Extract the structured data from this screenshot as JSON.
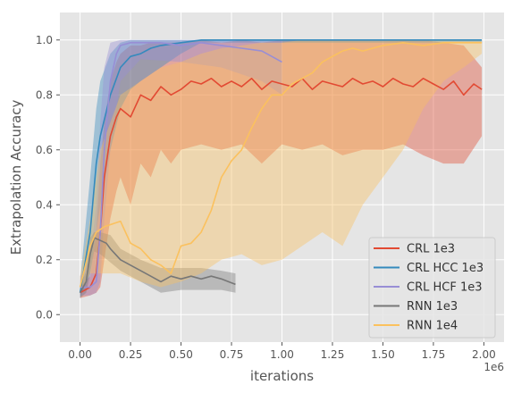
{
  "chart_data": {
    "type": "line",
    "xlabel": "iterations",
    "ylabel": "Extrapolation Accuracy",
    "x_offset_label": "1e6",
    "xlim": [
      -0.1,
      2.1
    ],
    "ylim": [
      -0.1,
      1.1
    ],
    "x_ticks": [
      0.0,
      0.25,
      0.5,
      0.75,
      1.0,
      1.25,
      1.5,
      1.75,
      2.0
    ],
    "x_tick_labels": [
      "0.00",
      "0.25",
      "0.50",
      "0.75",
      "1.00",
      "1.25",
      "1.50",
      "1.75",
      "2.00"
    ],
    "y_ticks": [
      0.0,
      0.2,
      0.4,
      0.6,
      0.8,
      1.0
    ],
    "y_tick_labels": [
      "0.0",
      "0.2",
      "0.4",
      "0.6",
      "0.8",
      "1.0"
    ],
    "grid": true,
    "legend_position": "lower-right",
    "series": [
      {
        "name": "CRL 1e3",
        "color": "#E24A33",
        "points": [
          [
            0.0,
            0.08
          ],
          [
            0.05,
            0.1
          ],
          [
            0.08,
            0.15
          ],
          [
            0.1,
            0.3
          ],
          [
            0.12,
            0.5
          ],
          [
            0.15,
            0.65
          ],
          [
            0.18,
            0.72
          ],
          [
            0.2,
            0.75
          ],
          [
            0.25,
            0.72
          ],
          [
            0.3,
            0.8
          ],
          [
            0.35,
            0.78
          ],
          [
            0.4,
            0.83
          ],
          [
            0.45,
            0.8
          ],
          [
            0.5,
            0.82
          ],
          [
            0.55,
            0.85
          ],
          [
            0.6,
            0.84
          ],
          [
            0.65,
            0.86
          ],
          [
            0.7,
            0.83
          ],
          [
            0.75,
            0.85
          ],
          [
            0.8,
            0.83
          ],
          [
            0.85,
            0.86
          ],
          [
            0.9,
            0.82
          ],
          [
            0.95,
            0.85
          ],
          [
            1.0,
            0.84
          ],
          [
            1.05,
            0.83
          ],
          [
            1.1,
            0.86
          ],
          [
            1.15,
            0.82
          ],
          [
            1.2,
            0.85
          ],
          [
            1.25,
            0.84
          ],
          [
            1.3,
            0.83
          ],
          [
            1.35,
            0.86
          ],
          [
            1.4,
            0.84
          ],
          [
            1.45,
            0.85
          ],
          [
            1.5,
            0.83
          ],
          [
            1.55,
            0.86
          ],
          [
            1.6,
            0.84
          ],
          [
            1.65,
            0.83
          ],
          [
            1.7,
            0.86
          ],
          [
            1.75,
            0.84
          ],
          [
            1.8,
            0.82
          ],
          [
            1.85,
            0.85
          ],
          [
            1.9,
            0.8
          ],
          [
            1.95,
            0.84
          ],
          [
            1.99,
            0.82
          ]
        ],
        "band": [
          [
            0.0,
            0.06,
            0.1
          ],
          [
            0.05,
            0.07,
            0.14
          ],
          [
            0.08,
            0.08,
            0.3
          ],
          [
            0.1,
            0.1,
            0.55
          ],
          [
            0.12,
            0.2,
            0.7
          ],
          [
            0.15,
            0.35,
            0.85
          ],
          [
            0.18,
            0.45,
            0.92
          ],
          [
            0.2,
            0.5,
            0.95
          ],
          [
            0.25,
            0.4,
            0.98
          ],
          [
            0.3,
            0.55,
            0.98
          ],
          [
            0.35,
            0.5,
            0.99
          ],
          [
            0.4,
            0.6,
            0.99
          ],
          [
            0.45,
            0.55,
            0.99
          ],
          [
            0.5,
            0.6,
            0.99
          ],
          [
            0.6,
            0.62,
            1.0
          ],
          [
            0.7,
            0.6,
            0.99
          ],
          [
            0.8,
            0.62,
            1.0
          ],
          [
            0.9,
            0.55,
            0.99
          ],
          [
            1.0,
            0.62,
            1.0
          ],
          [
            1.1,
            0.6,
            1.0
          ],
          [
            1.2,
            0.62,
            1.0
          ],
          [
            1.3,
            0.58,
            1.0
          ],
          [
            1.4,
            0.6,
            1.0
          ],
          [
            1.5,
            0.6,
            1.0
          ],
          [
            1.6,
            0.62,
            1.0
          ],
          [
            1.7,
            0.58,
            1.0
          ],
          [
            1.8,
            0.55,
            0.99
          ],
          [
            1.9,
            0.55,
            0.98
          ],
          [
            1.99,
            0.65,
            0.9
          ]
        ]
      },
      {
        "name": "CRL HCC 1e3",
        "color": "#348ABD",
        "points": [
          [
            0.0,
            0.08
          ],
          [
            0.05,
            0.3
          ],
          [
            0.08,
            0.55
          ],
          [
            0.1,
            0.65
          ],
          [
            0.15,
            0.8
          ],
          [
            0.2,
            0.9
          ],
          [
            0.25,
            0.94
          ],
          [
            0.3,
            0.95
          ],
          [
            0.35,
            0.97
          ],
          [
            0.4,
            0.98
          ],
          [
            0.5,
            0.99
          ],
          [
            0.6,
            1.0
          ],
          [
            0.8,
            1.0
          ],
          [
            1.0,
            1.0
          ],
          [
            1.25,
            1.0
          ],
          [
            1.5,
            1.0
          ],
          [
            1.75,
            1.0
          ],
          [
            1.99,
            1.0
          ]
        ],
        "band": [
          [
            0.0,
            0.06,
            0.12
          ],
          [
            0.05,
            0.15,
            0.5
          ],
          [
            0.08,
            0.3,
            0.75
          ],
          [
            0.1,
            0.4,
            0.85
          ],
          [
            0.15,
            0.6,
            0.95
          ],
          [
            0.2,
            0.75,
            0.99
          ],
          [
            0.25,
            0.82,
            1.0
          ],
          [
            0.3,
            0.85,
            1.0
          ],
          [
            0.4,
            0.9,
            1.0
          ],
          [
            0.5,
            0.95,
            1.0
          ],
          [
            0.6,
            0.99,
            1.0
          ],
          [
            1.99,
            0.99,
            1.0
          ]
        ]
      },
      {
        "name": "CRL HCF 1e3",
        "color": "#988ED5",
        "points": [
          [
            0.0,
            0.1
          ],
          [
            0.05,
            0.1
          ],
          [
            0.08,
            0.12
          ],
          [
            0.1,
            0.3
          ],
          [
            0.12,
            0.6
          ],
          [
            0.15,
            0.85
          ],
          [
            0.18,
            0.95
          ],
          [
            0.2,
            0.98
          ],
          [
            0.25,
            0.99
          ],
          [
            0.3,
            0.99
          ],
          [
            0.4,
            0.99
          ],
          [
            0.5,
            0.98
          ],
          [
            0.6,
            0.99
          ],
          [
            0.7,
            0.98
          ],
          [
            0.8,
            0.97
          ],
          [
            0.9,
            0.96
          ],
          [
            1.0,
            0.92
          ]
        ],
        "band": [
          [
            0.0,
            0.07,
            0.14
          ],
          [
            0.05,
            0.07,
            0.2
          ],
          [
            0.08,
            0.08,
            0.4
          ],
          [
            0.1,
            0.12,
            0.7
          ],
          [
            0.12,
            0.35,
            0.9
          ],
          [
            0.15,
            0.6,
            0.99
          ],
          [
            0.2,
            0.85,
            1.0
          ],
          [
            0.3,
            0.93,
            1.0
          ],
          [
            0.5,
            0.92,
            1.0
          ],
          [
            0.7,
            0.9,
            1.0
          ],
          [
            0.9,
            0.85,
            1.0
          ],
          [
            1.0,
            0.8,
            1.0
          ]
        ]
      },
      {
        "name": "RNN 1e3",
        "color": "#777777",
        "points": [
          [
            0.0,
            0.08
          ],
          [
            0.03,
            0.12
          ],
          [
            0.05,
            0.22
          ],
          [
            0.07,
            0.28
          ],
          [
            0.1,
            0.27
          ],
          [
            0.13,
            0.26
          ],
          [
            0.15,
            0.24
          ],
          [
            0.2,
            0.2
          ],
          [
            0.25,
            0.18
          ],
          [
            0.3,
            0.16
          ],
          [
            0.35,
            0.14
          ],
          [
            0.4,
            0.12
          ],
          [
            0.45,
            0.14
          ],
          [
            0.5,
            0.13
          ],
          [
            0.55,
            0.14
          ],
          [
            0.6,
            0.13
          ],
          [
            0.65,
            0.14
          ],
          [
            0.7,
            0.13
          ],
          [
            0.77,
            0.11
          ]
        ],
        "band": [
          [
            0.0,
            0.06,
            0.1
          ],
          [
            0.03,
            0.08,
            0.16
          ],
          [
            0.05,
            0.15,
            0.28
          ],
          [
            0.07,
            0.23,
            0.3
          ],
          [
            0.1,
            0.22,
            0.3
          ],
          [
            0.15,
            0.19,
            0.29
          ],
          [
            0.2,
            0.16,
            0.24
          ],
          [
            0.3,
            0.12,
            0.2
          ],
          [
            0.4,
            0.08,
            0.17
          ],
          [
            0.5,
            0.09,
            0.17
          ],
          [
            0.6,
            0.09,
            0.17
          ],
          [
            0.7,
            0.09,
            0.16
          ],
          [
            0.77,
            0.08,
            0.15
          ]
        ]
      },
      {
        "name": "RNN 1e4",
        "color": "#FBC15E",
        "points": [
          [
            0.0,
            0.1
          ],
          [
            0.05,
            0.25
          ],
          [
            0.08,
            0.3
          ],
          [
            0.12,
            0.32
          ],
          [
            0.2,
            0.34
          ],
          [
            0.25,
            0.26
          ],
          [
            0.3,
            0.24
          ],
          [
            0.35,
            0.2
          ],
          [
            0.4,
            0.18
          ],
          [
            0.45,
            0.15
          ],
          [
            0.5,
            0.25
          ],
          [
            0.55,
            0.26
          ],
          [
            0.6,
            0.3
          ],
          [
            0.65,
            0.38
          ],
          [
            0.7,
            0.5
          ],
          [
            0.75,
            0.56
          ],
          [
            0.8,
            0.6
          ],
          [
            0.85,
            0.68
          ],
          [
            0.9,
            0.75
          ],
          [
            0.95,
            0.8
          ],
          [
            1.0,
            0.8
          ],
          [
            1.05,
            0.84
          ],
          [
            1.1,
            0.86
          ],
          [
            1.15,
            0.88
          ],
          [
            1.2,
            0.92
          ],
          [
            1.25,
            0.94
          ],
          [
            1.3,
            0.96
          ],
          [
            1.35,
            0.97
          ],
          [
            1.4,
            0.96
          ],
          [
            1.45,
            0.97
          ],
          [
            1.5,
            0.98
          ],
          [
            1.6,
            0.99
          ],
          [
            1.7,
            0.98
          ],
          [
            1.8,
            0.99
          ],
          [
            1.9,
            0.99
          ],
          [
            1.99,
            0.99
          ]
        ],
        "band": [
          [
            0.0,
            0.08,
            0.14
          ],
          [
            0.05,
            0.15,
            0.35
          ],
          [
            0.1,
            0.15,
            0.6
          ],
          [
            0.2,
            0.15,
            0.8
          ],
          [
            0.3,
            0.12,
            0.85
          ],
          [
            0.4,
            0.1,
            0.9
          ],
          [
            0.5,
            0.12,
            0.92
          ],
          [
            0.6,
            0.15,
            0.95
          ],
          [
            0.7,
            0.2,
            0.97
          ],
          [
            0.8,
            0.22,
            0.98
          ],
          [
            0.9,
            0.18,
            0.99
          ],
          [
            1.0,
            0.2,
            0.99
          ],
          [
            1.1,
            0.25,
            1.0
          ],
          [
            1.2,
            0.3,
            1.0
          ],
          [
            1.3,
            0.25,
            1.0
          ],
          [
            1.4,
            0.4,
            1.0
          ],
          [
            1.5,
            0.5,
            1.0
          ],
          [
            1.6,
            0.6,
            1.0
          ],
          [
            1.7,
            0.75,
            1.0
          ],
          [
            1.8,
            0.85,
            1.0
          ],
          [
            1.9,
            0.9,
            1.0
          ],
          [
            1.99,
            0.95,
            1.0
          ]
        ]
      }
    ]
  }
}
